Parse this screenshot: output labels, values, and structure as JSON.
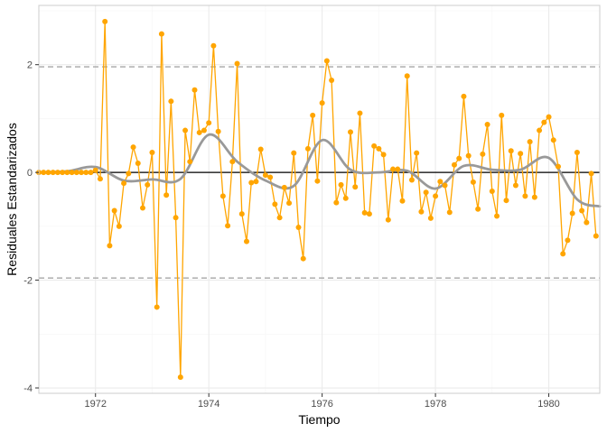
{
  "chart_data": {
    "type": "line",
    "title": "",
    "xlabel": "Tiempo",
    "ylabel": "Residuales Estandarizados",
    "xlim": [
      1971.0,
      1980.9
    ],
    "ylim": [
      -4.1,
      3.1
    ],
    "x_ticks": [
      1972,
      1974,
      1976,
      1978,
      1980
    ],
    "x_tick_labels": [
      "1972",
      "1974",
      "1976",
      "1978",
      "1980"
    ],
    "y_ticks": [
      -4,
      -2,
      0,
      2
    ],
    "y_tick_labels": [
      "-4",
      "-2",
      "0",
      "2"
    ],
    "grid": true,
    "reference_lines": {
      "zero": 0,
      "bounds": [
        -1.96,
        1.96
      ]
    },
    "colors": {
      "series": "#FFA500",
      "smooth": "#999999",
      "zero_line": "#000000",
      "bound_lines": "#A6A6A6",
      "grid_major": "#EBEBEB",
      "grid_minor": "#F5F5F5",
      "panel_border": "#CCCCCC"
    },
    "start": [
      1971,
      1
    ],
    "frequency": 12,
    "series": [
      {
        "values": [
          0,
          0,
          0,
          0,
          0,
          0,
          0,
          0,
          0,
          0,
          0,
          0,
          0.04,
          -0.12,
          2.8,
          -1.36,
          -0.71,
          -1.0,
          -0.2,
          -0.02,
          0.47,
          0.17,
          -0.66,
          -0.23,
          0.37,
          -2.5,
          2.57,
          -0.42,
          1.32,
          -0.84,
          -3.8,
          0.78,
          0.2,
          1.53,
          0.74,
          0.78,
          0.92,
          2.35,
          0.76,
          -0.44,
          -0.99,
          0.2,
          2.02,
          -0.77,
          -1.28,
          -0.19,
          -0.17,
          0.43,
          -0.05,
          -0.09,
          -0.59,
          -0.84,
          -0.28,
          -0.57,
          0.36,
          -1.02,
          -1.6,
          0.44,
          1.06,
          -0.16,
          1.29,
          2.07,
          1.71,
          -0.56,
          -0.23,
          -0.48,
          0.75,
          -0.27,
          1.1,
          -0.75,
          -0.77,
          0.49,
          0.44,
          0.33,
          -0.88,
          0.06,
          0.06,
          -0.53,
          1.79,
          -0.14,
          0.36,
          -0.73,
          -0.37,
          -0.85,
          -0.44,
          -0.17,
          -0.24,
          -0.74,
          0.14,
          0.26,
          1.41,
          0.31,
          -0.18,
          -0.68,
          0.34,
          0.89,
          -0.35,
          -0.81,
          1.06,
          -0.52,
          0.4,
          -0.24,
          0.35,
          -0.44,
          0.57,
          -0.46,
          0.78,
          0.93,
          1.03,
          0.6,
          0.11,
          -1.51,
          -1.26,
          -0.76,
          0.37,
          -0.71,
          -0.93,
          -0.02,
          -1.18
        ]
      }
    ],
    "smooth": {
      "x": [
        1971.0,
        1971.5,
        1972.0,
        1972.5,
        1973.0,
        1973.5,
        1974.0,
        1974.5,
        1975.0,
        1975.5,
        1976.0,
        1976.5,
        1977.0,
        1977.5,
        1978.0,
        1978.5,
        1979.0,
        1979.5,
        1980.0,
        1980.5,
        1980.9
      ],
      "y": [
        0.0,
        0.02,
        0.1,
        -0.15,
        -0.13,
        -0.12,
        0.7,
        0.2,
        -0.15,
        -0.25,
        0.6,
        0.05,
        0.0,
        0.03,
        -0.3,
        0.12,
        0.05,
        0.05,
        0.27,
        -0.5,
        -0.63
      ]
    }
  }
}
